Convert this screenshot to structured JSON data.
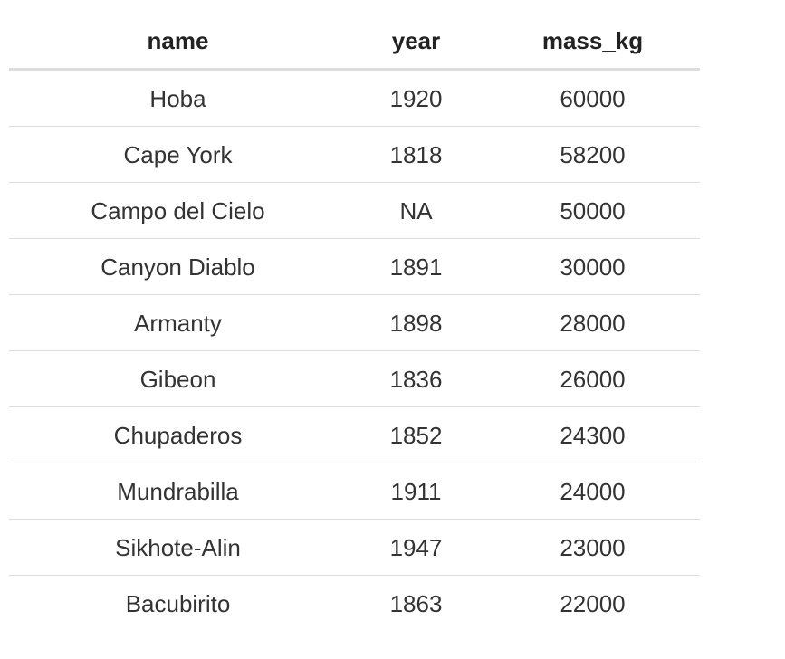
{
  "table": {
    "columns": [
      "name",
      "year",
      "mass_kg"
    ],
    "rows": [
      [
        "Hoba",
        "1920",
        "60000"
      ],
      [
        "Cape York",
        "1818",
        "58200"
      ],
      [
        "Campo del Cielo",
        "NA",
        "50000"
      ],
      [
        "Canyon Diablo",
        "1891",
        "30000"
      ],
      [
        "Armanty",
        "1898",
        "28000"
      ],
      [
        "Gibeon",
        "1836",
        "26000"
      ],
      [
        "Chupaderos",
        "1852",
        "24300"
      ],
      [
        "Mundrabilla",
        "1911",
        "24000"
      ],
      [
        "Sikhote-Alin",
        "1947",
        "23000"
      ],
      [
        "Bacubirito",
        "1863",
        "22000"
      ]
    ]
  },
  "colors": {
    "text": "#333333",
    "header_text": "#222222",
    "rule": "#dddddd"
  }
}
